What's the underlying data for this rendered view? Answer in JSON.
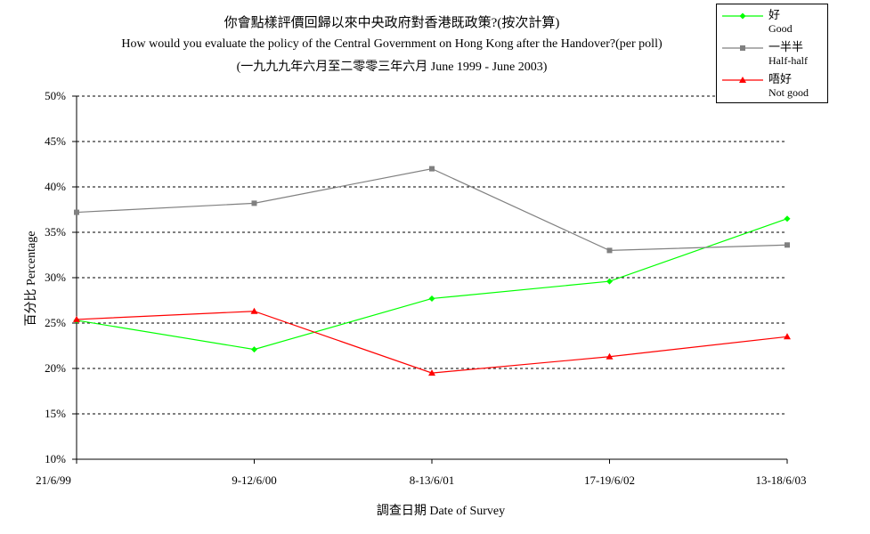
{
  "titles": {
    "zh": "你會點樣評價回歸以來中央政府對香港既政策?(按次計算)",
    "en": "How would you evaluate the policy of the Central Government on Hong Kong after the Handover?(per poll)",
    "period": "(一九九九年六月至二零零三年六月 June 1999 - June 2003)"
  },
  "axes": {
    "ylabel": "百分比 Percentage",
    "xlabel": "調查日期 Date of Survey"
  },
  "colors": {
    "good": "#00ff00",
    "half": "#808080",
    "not_good": "#ff0000",
    "gridline": "#000000"
  },
  "legend": [
    {
      "zh": "好",
      "en": "Good",
      "marker": "diamond",
      "color": "#00ff00"
    },
    {
      "zh": "一半半",
      "en": "Half-half",
      "marker": "square",
      "color": "#808080"
    },
    {
      "zh": "唔好",
      "en": "Not good",
      "marker": "triangle",
      "color": "#ff0000"
    }
  ],
  "chart_data": {
    "type": "line",
    "categories": [
      "21/6/99",
      "9-12/6/00",
      "8-13/6/01",
      "17-19/6/02",
      "13-18/6/03"
    ],
    "y_ticks": [
      "10%",
      "15%",
      "20%",
      "25%",
      "30%",
      "35%",
      "40%",
      "45%",
      "50%"
    ],
    "ylim": [
      10,
      50
    ],
    "y_unit": "%",
    "grid": "horizontal dashed",
    "legend_position": "top-right",
    "series": [
      {
        "name": "好 Good",
        "marker": "diamond",
        "color": "#00ff00",
        "values": [
          25.3,
          22.1,
          27.7,
          29.6,
          36.5
        ]
      },
      {
        "name": "一半半 Half-half",
        "marker": "square",
        "color": "#808080",
        "values": [
          37.2,
          38.2,
          42.0,
          33.0,
          33.6
        ]
      },
      {
        "name": "唔好 Not good",
        "marker": "triangle",
        "color": "#ff0000",
        "values": [
          25.4,
          26.3,
          19.5,
          21.3,
          23.5
        ]
      }
    ]
  }
}
